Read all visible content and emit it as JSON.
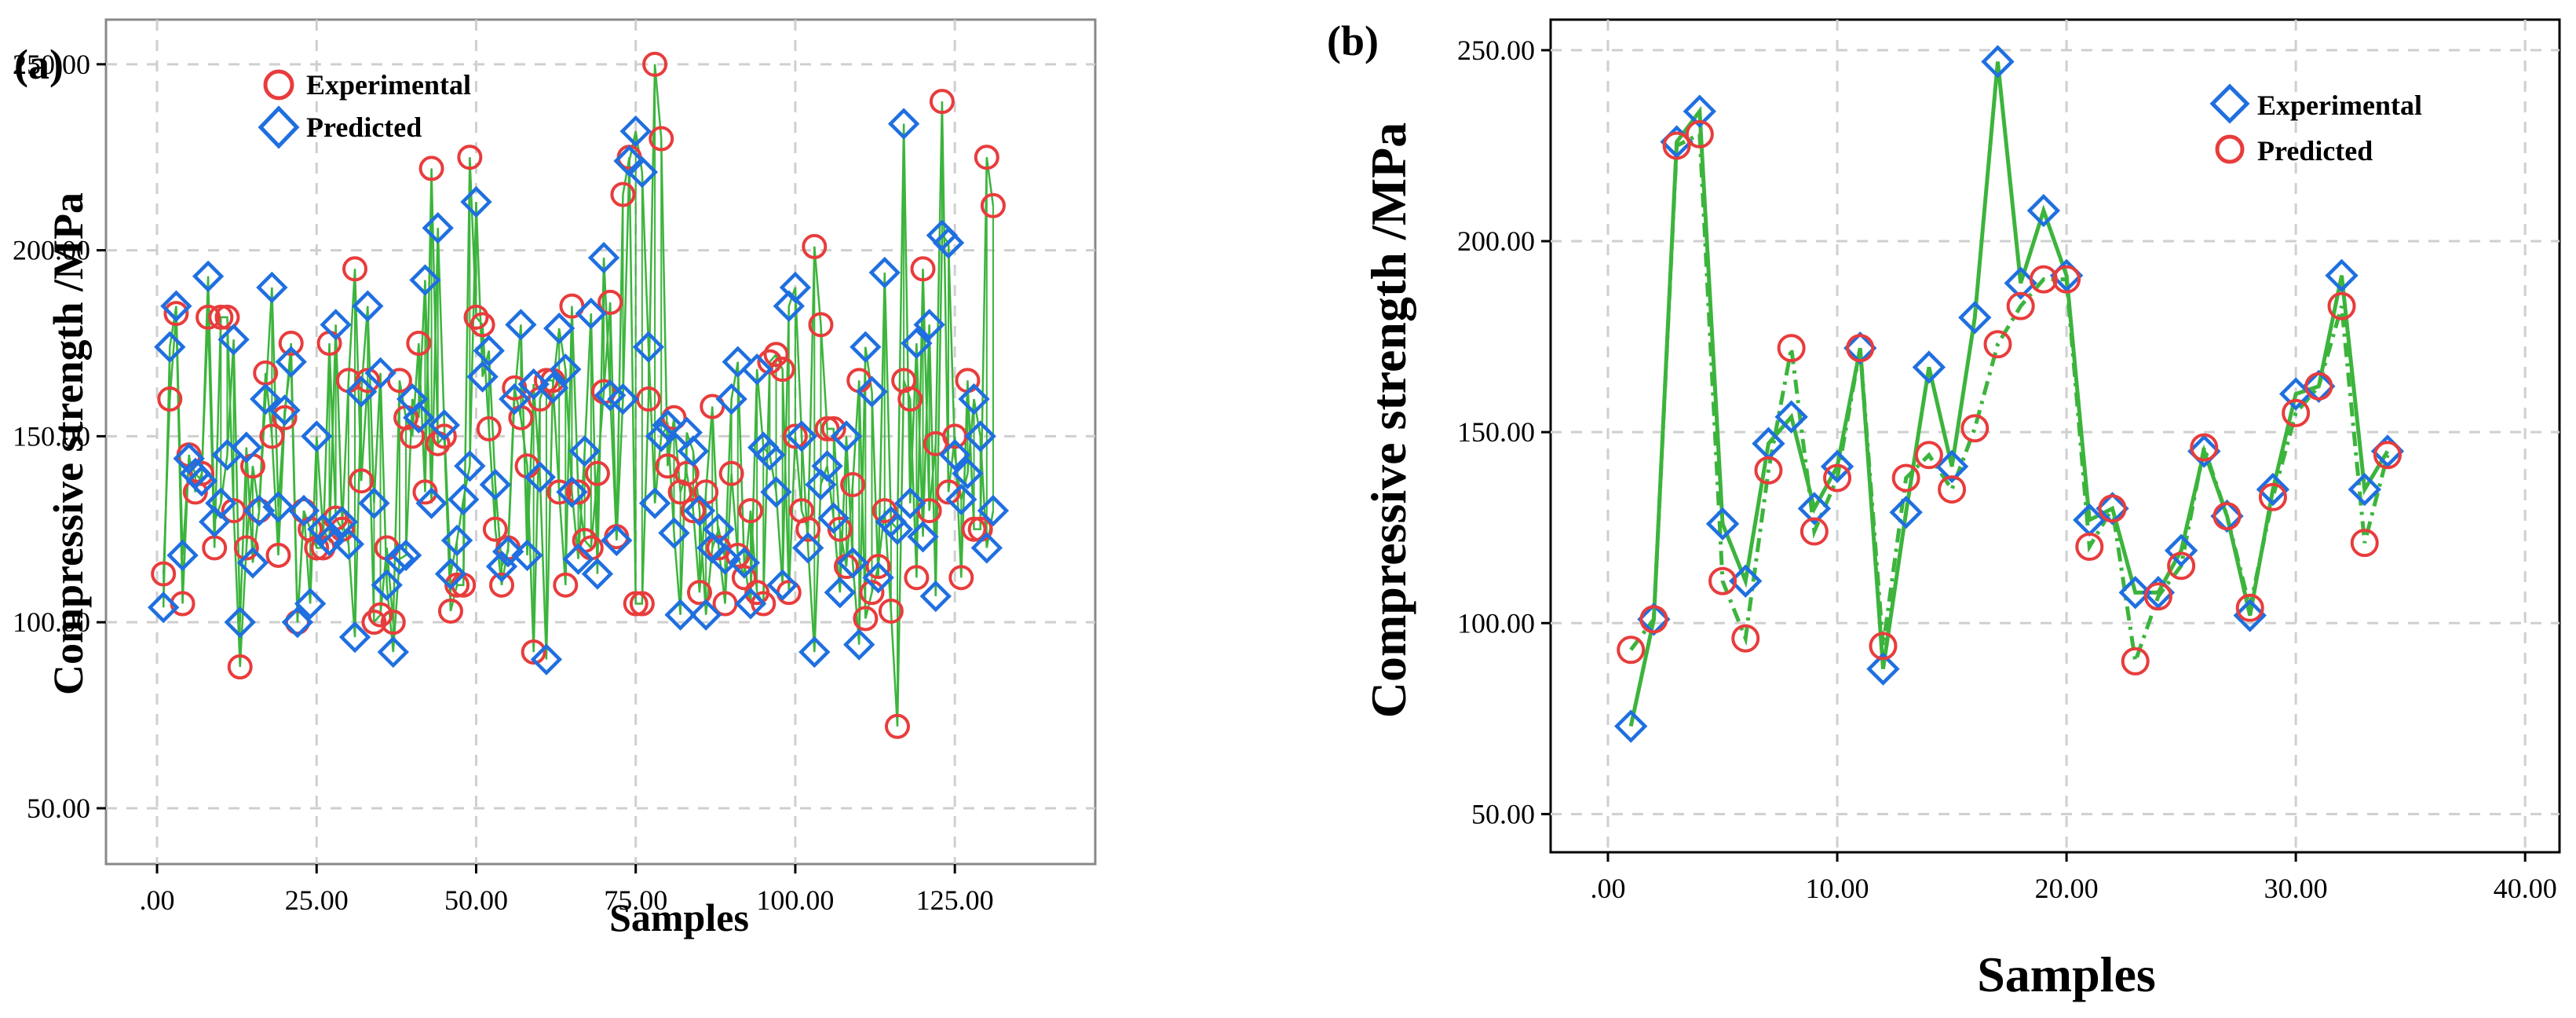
{
  "chart_data": [
    {
      "panel_label": "(a)",
      "type": "line",
      "xlabel": "Samples",
      "ylabel": "Compressive strength /MPa",
      "xlim": [
        -8,
        147
      ],
      "ylim": [
        35,
        262
      ],
      "xticks": [
        0,
        25,
        50,
        75,
        100,
        125
      ],
      "xtick_labels": [
        ".00",
        "25.00",
        "50.00",
        "75.00",
        "100.00",
        "125.00"
      ],
      "yticks": [
        50,
        100,
        150,
        200,
        250
      ],
      "ytick_labels": [
        "50.00",
        "100.00",
        "150.00",
        "200.00",
        "250.00"
      ],
      "grid": true,
      "legend_position": "top-left",
      "series": [
        {
          "name": "Experimental",
          "marker": "circle",
          "color": "#e83c3c",
          "values": [
            113,
            160,
            183,
            105,
            145,
            135,
            140,
            182,
            120,
            182,
            182,
            130,
            88,
            120,
            142,
            130,
            167,
            150,
            118,
            155,
            175,
            100,
            130,
            125,
            120,
            120,
            175,
            128,
            125,
            165,
            195,
            138,
            165,
            100,
            102,
            120,
            100,
            165,
            155,
            150,
            175,
            135,
            222,
            148,
            150,
            103,
            110,
            110,
            225,
            182,
            180,
            152,
            125,
            110,
            120,
            163,
            155,
            142,
            92,
            160,
            165,
            165,
            135,
            110,
            185,
            135,
            122,
            120,
            140,
            162,
            186,
            123,
            215,
            225,
            105,
            105,
            160,
            250,
            230,
            142,
            155,
            135,
            140,
            130,
            108,
            135,
            158,
            120,
            105,
            140,
            118,
            112,
            130,
            108,
            105,
            170,
            172,
            168,
            108,
            150,
            130,
            125,
            201,
            180,
            152,
            152,
            125,
            115,
            137,
            165,
            101,
            108,
            115,
            130,
            103,
            72,
            165,
            160,
            112,
            195,
            130,
            148,
            240,
            135,
            150,
            112,
            165,
            125,
            125,
            225,
            212
          ],
          "x": [
            1,
            2,
            3,
            4,
            5,
            6,
            7,
            8,
            9,
            10,
            11,
            12,
            13,
            14,
            15,
            16,
            17,
            18,
            19,
            20,
            21,
            22,
            23,
            24,
            25,
            26,
            27,
            28,
            29,
            30,
            31,
            32,
            33,
            34,
            35,
            36,
            37,
            38,
            39,
            40,
            41,
            42,
            43,
            44,
            45,
            46,
            47,
            48,
            49,
            50,
            51,
            52,
            53,
            54,
            55,
            56,
            57,
            58,
            59,
            60,
            61,
            62,
            63,
            64,
            65,
            66,
            67,
            68,
            69,
            70,
            71,
            72,
            73,
            74,
            75,
            76,
            77,
            78,
            79,
            80,
            81,
            82,
            83,
            84,
            85,
            86,
            87,
            88,
            89,
            90,
            91,
            92,
            93,
            94,
            95,
            96,
            97,
            98,
            99,
            100,
            101,
            102,
            103,
            104,
            105,
            106,
            107,
            108,
            109,
            110,
            111,
            112,
            113,
            114,
            115,
            116,
            117,
            118,
            119,
            120,
            121,
            122,
            123,
            124,
            125,
            126,
            127,
            128,
            129,
            130,
            131
          ]
        },
        {
          "name": "Predicted",
          "marker": "diamond",
          "color": "#1f6fe0",
          "values": [
            104,
            174,
            185,
            118,
            144,
            140,
            138,
            193,
            127,
            132,
            145,
            176,
            100,
            147,
            116,
            130,
            160,
            190,
            131,
            157,
            170,
            100,
            130,
            105,
            150,
            125,
            122,
            180,
            127,
            121,
            96,
            162,
            185,
            132,
            167,
            110,
            92,
            117,
            118,
            160,
            155,
            192,
            132,
            206,
            153,
            113,
            122,
            133,
            142,
            213,
            166,
            173,
            137,
            115,
            119,
            160,
            180,
            118,
            164,
            139,
            90,
            163,
            179,
            168,
            135,
            117,
            146,
            183,
            113,
            198,
            161,
            122,
            160,
            224,
            232,
            221,
            174,
            132,
            150,
            153,
            124,
            102,
            151,
            146,
            130,
            102,
            120,
            125,
            117,
            160,
            170,
            116,
            105,
            168,
            147,
            145,
            135,
            110,
            185,
            190,
            150,
            120,
            92,
            137,
            142,
            128,
            108,
            150,
            116,
            94,
            174,
            162,
            112,
            194,
            127,
            125,
            234,
            132,
            175,
            123,
            180,
            107,
            204,
            202,
            145,
            133,
            140,
            160,
            150,
            120,
            130
          ],
          "x": [
            1,
            2,
            3,
            4,
            5,
            6,
            7,
            8,
            9,
            10,
            11,
            12,
            13,
            14,
            15,
            16,
            17,
            18,
            19,
            20,
            21,
            22,
            23,
            24,
            25,
            26,
            27,
            28,
            29,
            30,
            31,
            32,
            33,
            34,
            35,
            36,
            37,
            38,
            39,
            40,
            41,
            42,
            43,
            44,
            45,
            46,
            47,
            48,
            49,
            50,
            51,
            52,
            53,
            54,
            55,
            56,
            57,
            58,
            59,
            60,
            61,
            62,
            63,
            64,
            65,
            66,
            67,
            68,
            69,
            70,
            71,
            72,
            73,
            74,
            75,
            76,
            77,
            78,
            79,
            80,
            81,
            82,
            83,
            84,
            85,
            86,
            87,
            88,
            89,
            90,
            91,
            92,
            93,
            94,
            95,
            96,
            97,
            98,
            99,
            100,
            101,
            102,
            103,
            104,
            105,
            106,
            107,
            108,
            109,
            110,
            111,
            112,
            113,
            114,
            115,
            116,
            117,
            118,
            119,
            120,
            121,
            122,
            123,
            124,
            125,
            126,
            127,
            128,
            129,
            130,
            131
          ]
        }
      ]
    },
    {
      "panel_label": "(b)",
      "type": "line",
      "xlabel": "Samples",
      "ylabel": "Compressive strength /MPa",
      "xlim": [
        -2.5,
        41.5
      ],
      "ylim": [
        40,
        258
      ],
      "xticks": [
        0,
        10,
        20,
        30,
        40
      ],
      "xtick_labels": [
        ".00",
        "10.00",
        "20.00",
        "30.00",
        "40.00"
      ],
      "yticks": [
        50,
        100,
        150,
        200,
        250
      ],
      "ytick_labels": [
        "50.00",
        "100.00",
        "150.00",
        "200.00",
        "250.00"
      ],
      "grid": true,
      "legend_position": "top-right",
      "series": [
        {
          "name": "Experimental",
          "marker": "diamond",
          "color": "#1f6fe0",
          "x": [
            1,
            2,
            3,
            4,
            5,
            6,
            7,
            8,
            9,
            10,
            11,
            12,
            13,
            14,
            15,
            16,
            17,
            18,
            19,
            20,
            21,
            22,
            23,
            24,
            25,
            26,
            27,
            28,
            29,
            30,
            31,
            32,
            33,
            34
          ],
          "values": [
            73,
            101,
            226,
            234,
            126,
            111,
            147,
            154,
            130,
            141,
            172,
            88,
            129,
            167,
            141,
            180,
            247,
            189,
            208,
            191,
            127,
            130,
            108,
            108,
            119,
            145,
            128,
            102,
            135,
            160,
            162,
            191,
            135,
            145
          ]
        },
        {
          "name": "Predicted",
          "marker": "circle",
          "color": "#e83c3c",
          "x": [
            1,
            2,
            3,
            4,
            5,
            6,
            7,
            8,
            9,
            10,
            11,
            12,
            13,
            14,
            15,
            16,
            17,
            18,
            19,
            20,
            21,
            22,
            23,
            24,
            25,
            26,
            27,
            28,
            29,
            30,
            31,
            32,
            33,
            34
          ],
          "values": [
            93,
            101,
            225,
            228,
            111,
            96,
            140,
            172,
            124,
            138,
            172,
            94,
            138,
            144,
            135,
            151,
            173,
            183,
            190,
            190,
            120,
            130,
            90,
            107,
            115,
            146,
            128,
            104,
            133,
            155,
            162,
            183,
            121,
            144
          ]
        }
      ]
    }
  ]
}
